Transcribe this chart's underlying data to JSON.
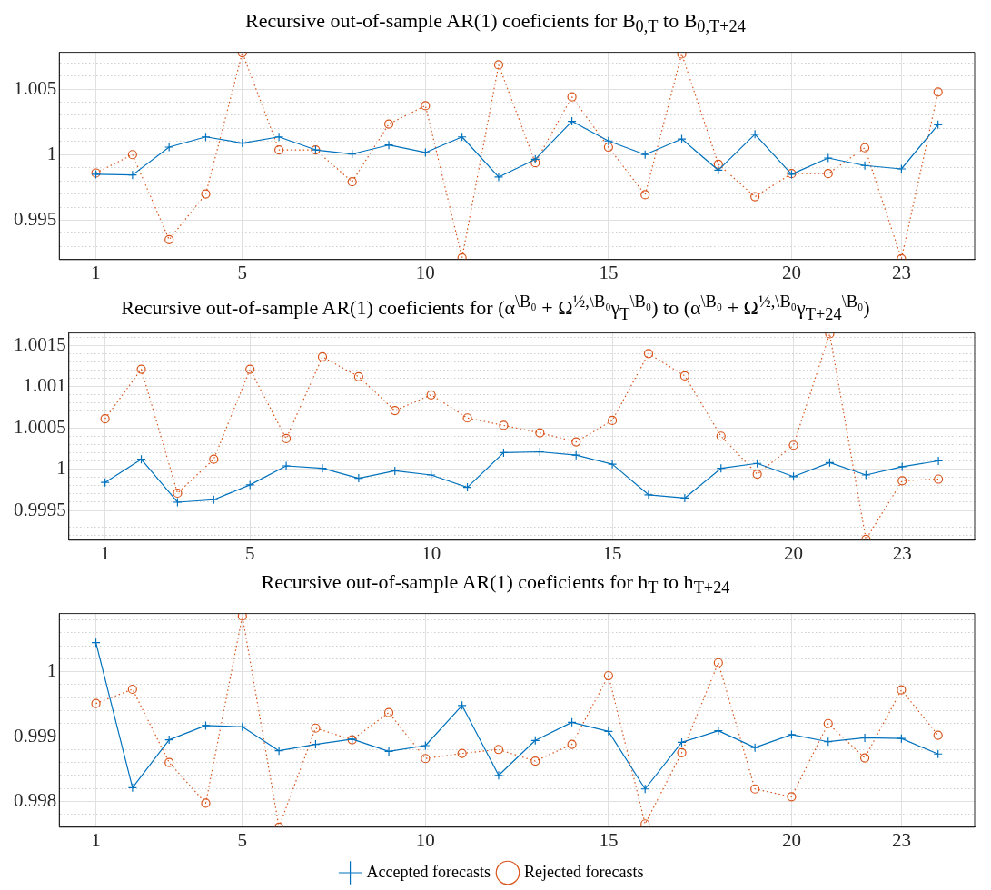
{
  "chart_data": [
    {
      "type": "line",
      "title": "Recursive out-of-sample AR(1) coeficients for B$_{0,T}$ to B$_{0,T+24}$",
      "x": [
        1,
        2,
        3,
        4,
        5,
        6,
        7,
        8,
        9,
        10,
        11,
        12,
        13,
        14,
        15,
        16,
        17,
        18,
        19,
        20,
        21,
        22,
        23,
        24
      ],
      "xlim": [
        0,
        25
      ],
      "xticks": [
        1,
        5,
        10,
        15,
        20,
        23
      ],
      "ylim": [
        0.992,
        1.0078
      ],
      "yticks": [
        {
          "value": 0.993,
          "label": null
        },
        {
          "value": 0.994,
          "label": null
        },
        0.995,
        {
          "value": 0.996,
          "label": null
        },
        {
          "value": 0.997,
          "label": null
        },
        {
          "value": 0.998,
          "label": null
        },
        {
          "value": 0.999,
          "label": null
        },
        1,
        {
          "value": 1.001,
          "label": null
        },
        {
          "value": 1.002,
          "label": null
        },
        {
          "value": 1.003,
          "label": null
        },
        {
          "value": 1.004,
          "label": null
        },
        1.005,
        {
          "value": 1.006,
          "label": null
        },
        {
          "value": 1.007,
          "label": null
        }
      ],
      "grid": true,
      "series": [
        {
          "color": "#0072bd",
          "marker": "cross",
          "line_style": "solid",
          "values": [
            0.9985,
            0.99845,
            1.00057,
            1.00135,
            1.00088,
            1.00135,
            1.00036,
            1.00005,
            1.00073,
            1.00016,
            1.00135,
            0.99829,
            0.99964,
            1.00254,
            1.00104,
            1.0,
            1.00119,
            0.99881,
            1.00155,
            0.9985,
            0.99974,
            0.99917,
            0.99891,
            1.00228
          ]
        },
        {
          "color": "#d95319",
          "marker": "circle",
          "line_style": "dotted",
          "values": [
            0.9986,
            1.0,
            0.99352,
            0.997,
            1.00777,
            1.00036,
            1.00036,
            0.99793,
            1.00233,
            1.00373,
            0.99213,
            1.00684,
            0.99938,
            1.0044,
            1.00057,
            0.99694,
            1.00767,
            0.99927,
            0.99679,
            0.99855,
            0.99855,
            1.00052,
            0.99207,
            1.00477
          ]
        }
      ]
    },
    {
      "type": "line",
      "title": "Recursive out-of-sample AR(1) coeficients for (α$^{\\B₀}$ + Ω$^{½,\\B₀}$γ$_{T}$$^{\\B₀}$) to (α$^{\\B₀}$ + Ω$^{½,\\B₀}$γ$_{T+24}$$^{\\B₀}$)",
      "x": [
        1,
        2,
        3,
        4,
        5,
        6,
        7,
        8,
        9,
        10,
        11,
        12,
        13,
        14,
        15,
        16,
        17,
        18,
        19,
        20,
        21,
        22,
        23,
        24
      ],
      "xlim": [
        0,
        25
      ],
      "xticks": [
        1,
        5,
        10,
        15,
        20,
        23
      ],
      "ylim": [
        0.99914,
        1.00165
      ],
      "yticks": [
        {
          "value": 0.9992,
          "label": null
        },
        {
          "value": 0.9993,
          "label": null
        },
        {
          "value": 0.9994,
          "label": null
        },
        0.9995,
        {
          "value": 0.9996,
          "label": null
        },
        {
          "value": 0.9997,
          "label": null
        },
        {
          "value": 0.9998,
          "label": null
        },
        {
          "value": 0.9999,
          "label": null
        },
        1,
        {
          "value": 1.0001,
          "label": null
        },
        {
          "value": 1.0002,
          "label": null
        },
        {
          "value": 1.0003,
          "label": null
        },
        {
          "value": 1.0004,
          "label": null
        },
        1.0005,
        {
          "value": 1.0006,
          "label": null
        },
        {
          "value": 1.0007,
          "label": null
        },
        {
          "value": 1.0008,
          "label": null
        },
        {
          "value": 1.0009,
          "label": null
        },
        1.001,
        {
          "value": 1.0011,
          "label": null
        },
        {
          "value": 1.0012,
          "label": null
        },
        {
          "value": 1.0013,
          "label": null
        },
        {
          "value": 1.0014,
          "label": null
        },
        1.0015,
        {
          "value": 1.0016,
          "label": null
        }
      ],
      "grid": true,
      "series": [
        {
          "color": "#0072bd",
          "marker": "cross",
          "line_style": "solid",
          "values": [
            0.99984,
            1.00012,
            0.9996,
            0.99963,
            0.99981,
            1.00004,
            1.00001,
            0.99989,
            0.99998,
            0.99993,
            0.99978,
            1.0002,
            1.00021,
            1.00017,
            1.00006,
            0.99969,
            0.99965,
            1.00001,
            1.00007,
            0.99991,
            1.00008,
            0.99993,
            1.00003,
            1.0001
          ]
        },
        {
          "color": "#d95319",
          "marker": "circle",
          "line_style": "dotted",
          "values": [
            1.00061,
            1.00121,
            0.99971,
            1.00012,
            1.00121,
            1.00037,
            1.00136,
            1.00112,
            1.00071,
            1.0009,
            1.00062,
            1.00053,
            1.00044,
            1.00033,
            1.00059,
            1.0014,
            1.00113,
            1.0004,
            0.99994,
            1.00029,
            1.00164,
            0.99915,
            0.99986,
            0.99988
          ]
        }
      ]
    },
    {
      "type": "line",
      "title": "Recursive out-of-sample AR(1) coeficients for h$_{T}$ to h$_{T+24}$",
      "x": [
        1,
        2,
        3,
        4,
        5,
        6,
        7,
        8,
        9,
        10,
        11,
        12,
        13,
        14,
        15,
        16,
        17,
        18,
        19,
        20,
        21,
        22,
        23,
        24
      ],
      "xlim": [
        0,
        25
      ],
      "xticks": [
        1,
        5,
        10,
        15,
        20,
        23
      ],
      "ylim": [
        0.9976,
        1.0009
      ],
      "yticks": [
        {
          "value": 0.9978,
          "label": null
        },
        0.998,
        {
          "value": 0.9982,
          "label": null
        },
        {
          "value": 0.9984,
          "label": null
        },
        {
          "value": 0.9986,
          "label": null
        },
        {
          "value": 0.9988,
          "label": null
        },
        0.999,
        {
          "value": 0.9992,
          "label": null
        },
        {
          "value": 0.9994,
          "label": null
        },
        {
          "value": 0.9996,
          "label": null
        },
        {
          "value": 0.9998,
          "label": null
        },
        1,
        {
          "value": 1.0002,
          "label": null
        },
        {
          "value": 1.0004,
          "label": null
        },
        {
          "value": 1.0006,
          "label": null
        },
        {
          "value": 1.0008,
          "label": null
        }
      ],
      "grid": true,
      "legend": "bottom",
      "series": [
        {
          "name": "Accepted forecasts",
          "color": "#0072bd",
          "marker": "cross",
          "line_style": "solid",
          "values": [
            1.00045,
            0.99821,
            0.99895,
            0.99917,
            0.99915,
            0.99878,
            0.99888,
            0.99896,
            0.99877,
            0.99886,
            0.99948,
            0.9984,
            0.99894,
            0.99922,
            0.99908,
            0.99819,
            0.99891,
            0.99909,
            0.99883,
            0.99903,
            0.99892,
            0.99898,
            0.99897,
            0.99873
          ]
        },
        {
          "name": "Rejected forecasts",
          "color": "#d95319",
          "marker": "circle",
          "line_style": "dotted",
          "values": [
            0.99951,
            0.99973,
            0.9986,
            0.99797,
            1.00086,
            0.9976,
            0.99913,
            0.99895,
            0.99937,
            0.99866,
            0.99874,
            0.9988,
            0.99862,
            0.99888,
            0.99994,
            0.99765,
            0.99875,
            1.00014,
            0.99819,
            0.99807,
            0.9992,
            0.99867,
            0.99972,
            0.99902
          ]
        }
      ]
    }
  ]
}
